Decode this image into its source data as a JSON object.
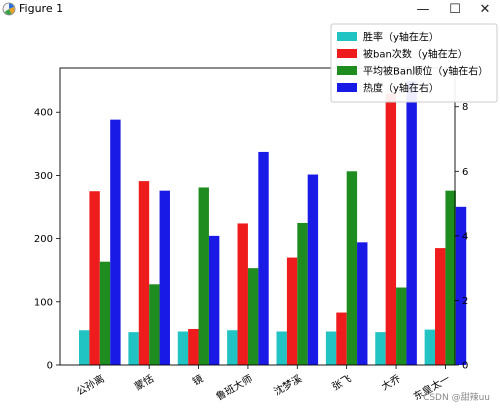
{
  "window": {
    "title": "Figure 1",
    "minimize_glyph": "—",
    "maximize_glyph": "☐",
    "close_glyph": "✕",
    "icon": "matplotlib-figure-icon"
  },
  "watermark": "CSDN @甜辣uu",
  "chart_data": {
    "type": "bar",
    "categories": [
      "公孙离",
      "蒙恬",
      "镜",
      "鲁班大师",
      "沈梦溪",
      "张飞",
      "大乔",
      "东皇太一"
    ],
    "left_axis": {
      "ylim": [
        0,
        470
      ],
      "ticks": [
        0,
        100,
        200,
        300,
        400
      ]
    },
    "right_axis": {
      "ylim": [
        0,
        9.2
      ],
      "ticks": [
        0,
        2,
        4,
        6,
        8
      ]
    },
    "series": [
      {
        "name": "胜率（y轴在左）",
        "axis": "left",
        "color": "#22c3c3",
        "values": [
          55,
          52,
          53,
          55,
          53,
          53,
          52,
          56
        ]
      },
      {
        "name": "被ban次数（y轴在左）",
        "axis": "left",
        "color": "#ee1c1c",
        "values": [
          275,
          291,
          57,
          224,
          170,
          83,
          430,
          185
        ]
      },
      {
        "name": "平均被Ban顺位（y轴在右）",
        "axis": "right",
        "color": "#1f8c1f",
        "values": [
          3.2,
          2.5,
          5.5,
          3.0,
          4.4,
          6.0,
          2.4,
          5.4
        ]
      },
      {
        "name": "热度（y轴在右）",
        "axis": "right",
        "color": "#1a1ae6",
        "values": [
          7.6,
          5.4,
          4.0,
          6.6,
          5.9,
          3.8,
          8.8,
          4.9
        ]
      }
    ],
    "legend_position": "top-right",
    "grid": false
  }
}
